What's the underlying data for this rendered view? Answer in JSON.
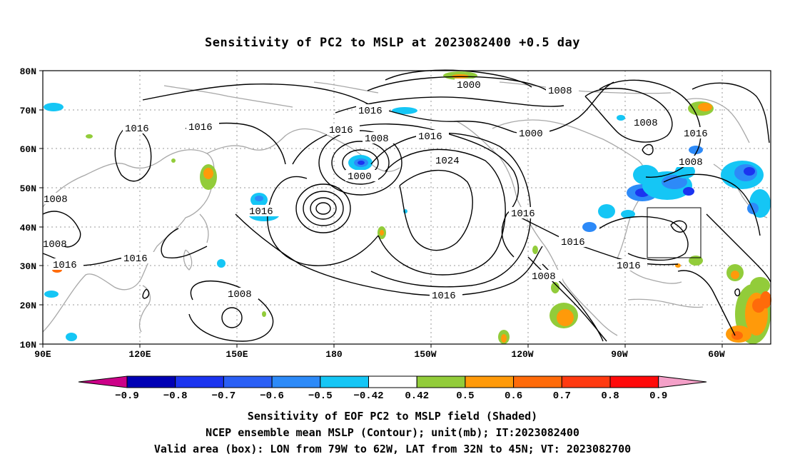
{
  "title": "Sensitivity of PC2 to MSLP at 2023082400 +0.5 day",
  "map": {
    "lat_labels": [
      "80N",
      "70N",
      "60N",
      "50N",
      "40N",
      "30N",
      "20N",
      "10N"
    ],
    "lon_labels": [
      "90E",
      "120E",
      "150E",
      "180",
      "150W",
      "120W",
      "90W",
      "60W"
    ],
    "contour_labels": [
      "1000",
      "1008",
      "1016",
      "1016",
      "1016",
      "1008",
      "1000",
      "1016",
      "1024",
      "1016",
      "1016",
      "1016",
      "1016",
      "1016",
      "1000",
      "1008",
      "1016",
      "1008",
      "1008",
      "1008",
      "1016",
      "1016",
      "1008",
      "1008"
    ],
    "valid_box": {
      "lon": [
        "79W",
        "62W"
      ],
      "lat": [
        "32N",
        "45N"
      ]
    }
  },
  "colorbar": {
    "labels": [
      "-0.9",
      "-0.8",
      "-0.7",
      "-0.6",
      "-0.5",
      "-0.42",
      "0.42",
      "0.5",
      "0.6",
      "0.7",
      "0.8",
      "0.9"
    ],
    "colors": [
      "#0000b4",
      "#1b34f0",
      "#2a5ff5",
      "#2d8af8",
      "#15c6f5",
      "#ffffff",
      "#92cc3a",
      "#ff9a0a",
      "#ff6b0a",
      "#ff3a10",
      "#ff0a0a"
    ],
    "low_extend_color": "#cc0088",
    "high_extend_color": "#f4a0c8"
  },
  "caption": {
    "line1": "Sensitivity of EOF PC2 to MSLP field (Shaded)",
    "line2": "NCEP ensemble mean MSLP (Contour); unit(mb); IT:2023082400",
    "line3": "Valid area (box): LON from 79W to 62W, LAT from 32N to 45N; VT: 2023082700"
  }
}
